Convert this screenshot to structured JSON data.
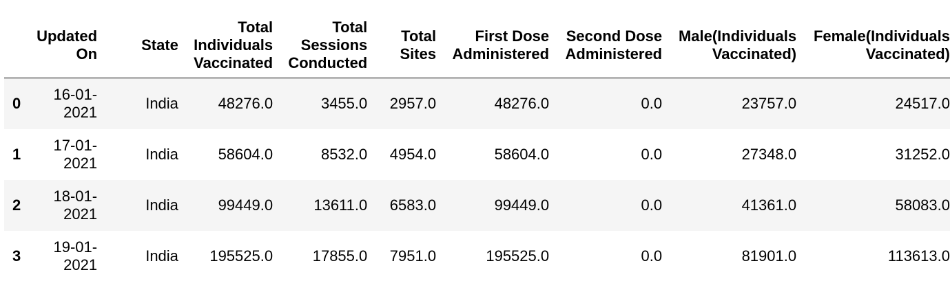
{
  "columns": {
    "index": "",
    "updated_on": [
      "Updated",
      "On"
    ],
    "state": [
      "State"
    ],
    "total_individuals_vaccinated": [
      "Total",
      "Individuals",
      "Vaccinated"
    ],
    "total_sessions_conducted": [
      "Total",
      "Sessions",
      "Conducted"
    ],
    "total_sites": [
      "Total",
      "Sites"
    ],
    "first_dose": [
      "First Dose",
      "Administered"
    ],
    "second_dose": [
      "Second Dose",
      "Administered"
    ],
    "male": [
      "Male(Individuals",
      "Vaccinated)"
    ],
    "female": [
      "Female(Individuals",
      "Vaccinated)"
    ]
  },
  "rows": [
    {
      "index": "0",
      "updated_on": [
        "16-01-",
        "2021"
      ],
      "state": "India",
      "total_individuals_vaccinated": "48276.0",
      "total_sessions_conducted": "3455.0",
      "total_sites": "2957.0",
      "first_dose": "48276.0",
      "second_dose": "0.0",
      "male": "23757.0",
      "female": "24517.0"
    },
    {
      "index": "1",
      "updated_on": [
        "17-01-",
        "2021"
      ],
      "state": "India",
      "total_individuals_vaccinated": "58604.0",
      "total_sessions_conducted": "8532.0",
      "total_sites": "4954.0",
      "first_dose": "58604.0",
      "second_dose": "0.0",
      "male": "27348.0",
      "female": "31252.0"
    },
    {
      "index": "2",
      "updated_on": [
        "18-01-",
        "2021"
      ],
      "state": "India",
      "total_individuals_vaccinated": "99449.0",
      "total_sessions_conducted": "13611.0",
      "total_sites": "6583.0",
      "first_dose": "99449.0",
      "second_dose": "0.0",
      "male": "41361.0",
      "female": "58083.0"
    },
    {
      "index": "3",
      "updated_on": [
        "19-01-",
        "2021"
      ],
      "state": "India",
      "total_individuals_vaccinated": "195525.0",
      "total_sessions_conducted": "17855.0",
      "total_sites": "7951.0",
      "first_dose": "195525.0",
      "second_dose": "0.0",
      "male": "81901.0",
      "female": "113613.0"
    }
  ]
}
